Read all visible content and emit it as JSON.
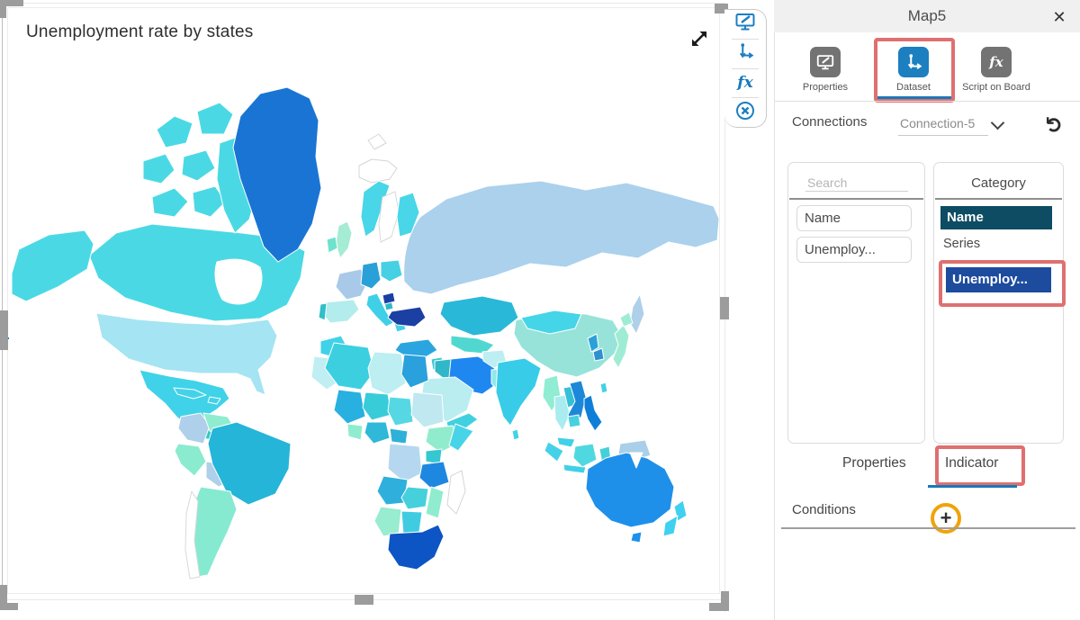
{
  "widget": {
    "title": "Unemployment rate by states"
  },
  "panel": {
    "title": "Map5",
    "close_label": "✕",
    "tabs": [
      {
        "label": "Properties"
      },
      {
        "label": "Dataset",
        "active": true
      },
      {
        "label": "Script on Board"
      }
    ],
    "connections": {
      "label": "Connections",
      "selected": "Connection-5"
    },
    "search": {
      "placeholder": "Search",
      "fields": [
        {
          "label": "Name"
        },
        {
          "label": "Unemploy..."
        }
      ]
    },
    "category": {
      "title": "Category",
      "category_item": "Name",
      "series_caption": "Series",
      "series_item": "Unemploy..."
    },
    "bottom_tabs": [
      {
        "label": "Properties"
      },
      {
        "label": "Indicator",
        "active": true
      }
    ],
    "conditions": {
      "label": "Conditions",
      "add_label": "+"
    }
  },
  "colors": {
    "accent_blue": "#1b7fc0",
    "annotation_red": "#df7070",
    "plus_orange": "#f0a30a",
    "category_item_bg": "#0e4c63",
    "series_item_bg": "#1d4b9e"
  },
  "map": {
    "regions": [
      {
        "id": "russia",
        "fill": "#abd1ec"
      },
      {
        "id": "sakhalin",
        "fill": "#aed0ea"
      },
      {
        "id": "canada",
        "fill": "#4ad9e4"
      },
      {
        "id": "hudson-bay",
        "fill": "#ffffff",
        "stroke": "#ffffff",
        "deco": true
      },
      {
        "id": "arctic-1",
        "fill": "#4ad9e4"
      },
      {
        "id": "arctic-2",
        "fill": "#4ad9e4"
      },
      {
        "id": "arctic-3",
        "fill": "#4ad9e4"
      },
      {
        "id": "arctic-4",
        "fill": "#4ad9e4"
      },
      {
        "id": "arctic-5",
        "fill": "#4ad9e4"
      },
      {
        "id": "arctic-6",
        "fill": "#4ad9e4"
      },
      {
        "id": "baffin",
        "fill": "#4ad9e4"
      },
      {
        "id": "alaska",
        "fill": "#4ad9e4"
      },
      {
        "id": "greenland",
        "fill": "#1a74d4"
      },
      {
        "id": "iceland",
        "fill": "#ffffff",
        "stroke": "#d5d5d5"
      },
      {
        "id": "svalbard",
        "fill": "#ffffff",
        "stroke": "#d5d5d5"
      },
      {
        "id": "usa",
        "fill": "#a5e4f2"
      },
      {
        "id": "mexico",
        "fill": "#3fd2e8"
      },
      {
        "id": "cuba",
        "fill": "#45d2e8"
      },
      {
        "id": "hispaniola",
        "fill": "#45d2e8"
      },
      {
        "id": "central-america",
        "fill": "#35c8c0"
      },
      {
        "id": "colombia",
        "fill": "#aed0ea"
      },
      {
        "id": "venezuela",
        "fill": "#8feccf"
      },
      {
        "id": "peru",
        "fill": "#8aebce"
      },
      {
        "id": "bolivia",
        "fill": "#aed0ea"
      },
      {
        "id": "brazil",
        "fill": "#25b5d8"
      },
      {
        "id": "argentina",
        "fill": "#86ead0"
      },
      {
        "id": "chile",
        "fill": "#ffffff",
        "stroke": "#d9d9d9"
      },
      {
        "id": "norway",
        "fill": "#48d6e8"
      },
      {
        "id": "sweden",
        "fill": "#ffffff",
        "stroke": "#d9d9d9"
      },
      {
        "id": "finland",
        "fill": "#48d6e8"
      },
      {
        "id": "uk",
        "fill": "#a4ecd4"
      },
      {
        "id": "ireland",
        "fill": "#6fe2cc"
      },
      {
        "id": "france",
        "fill": "#a9c9e8"
      },
      {
        "id": "spain",
        "fill": "#b3ecec"
      },
      {
        "id": "portugal",
        "fill": "#2fbfc8"
      },
      {
        "id": "germany",
        "fill": "#2aa0d8"
      },
      {
        "id": "poland",
        "fill": "#45d0e4"
      },
      {
        "id": "italy",
        "fill": "#3fd0e8"
      },
      {
        "id": "bosnia",
        "fill": "#2fb8c8"
      },
      {
        "id": "greece",
        "fill": "#45d0e4"
      },
      {
        "id": "lithuania",
        "fill": "#1c3fa4"
      },
      {
        "id": "ukraine",
        "fill": "#1c3fa4"
      },
      {
        "id": "kazakhstan",
        "fill": "#2ab8d8"
      },
      {
        "id": "central-asia",
        "fill": "#50d8d0"
      },
      {
        "id": "turkey",
        "fill": "#2aa5e0"
      },
      {
        "id": "levant",
        "fill": "#35c8d0"
      },
      {
        "id": "iraq",
        "fill": "#30b8c8"
      },
      {
        "id": "iran",
        "fill": "#1e88f0"
      },
      {
        "id": "afghanistan",
        "fill": "#bceef2"
      },
      {
        "id": "pakistan",
        "fill": "#8fe8ea"
      },
      {
        "id": "saudi",
        "fill": "#b9edf0"
      },
      {
        "id": "yemen",
        "fill": "#40d0e0"
      },
      {
        "id": "morocco",
        "fill": "#40d2e8"
      },
      {
        "id": "mauritania",
        "fill": "#c0eef2"
      },
      {
        "id": "algeria",
        "fill": "#3ccfe0"
      },
      {
        "id": "libya",
        "fill": "#bceef2"
      },
      {
        "id": "egypt",
        "fill": "#2aa0dc"
      },
      {
        "id": "mali",
        "fill": "#28b0e0"
      },
      {
        "id": "niger",
        "fill": "#38ccd8"
      },
      {
        "id": "chad",
        "fill": "#55d8e4"
      },
      {
        "id": "sudan",
        "fill": "#bfe8f0"
      },
      {
        "id": "nigeria",
        "fill": "#2fb8d8"
      },
      {
        "id": "ghana",
        "fill": "#8feccf"
      },
      {
        "id": "cameroon",
        "fill": "#2fb0d8"
      },
      {
        "id": "ethiopia",
        "fill": "#90eccc"
      },
      {
        "id": "somalia",
        "fill": "#48d4e8"
      },
      {
        "id": "kenya",
        "fill": "#35c8d0"
      },
      {
        "id": "drc",
        "fill": "#b5d8f0"
      },
      {
        "id": "tanzania",
        "fill": "#1e88e0"
      },
      {
        "id": "angola",
        "fill": "#2fb0dc"
      },
      {
        "id": "zambia",
        "fill": "#45d0dc"
      },
      {
        "id": "mozambique",
        "fill": "#8feccf"
      },
      {
        "id": "namibia",
        "fill": "#98ecd0"
      },
      {
        "id": "botswana",
        "fill": "#40cce0"
      },
      {
        "id": "south-africa",
        "fill": "#0d55c4"
      },
      {
        "id": "madagascar",
        "fill": "#ffffff",
        "stroke": "#d5d5d5"
      },
      {
        "id": "india",
        "fill": "#38cce8"
      },
      {
        "id": "sri-lanka",
        "fill": "#45d2e8"
      },
      {
        "id": "china",
        "fill": "#97e3da"
      },
      {
        "id": "mongolia",
        "fill": "#45d5e8"
      },
      {
        "id": "myanmar",
        "fill": "#90ecd2"
      },
      {
        "id": "thailand",
        "fill": "#a8ecf0"
      },
      {
        "id": "laos",
        "fill": "#35c0d8"
      },
      {
        "id": "vietnam",
        "fill": "#1e88d8"
      },
      {
        "id": "cambodia",
        "fill": "#48d0e0"
      },
      {
        "id": "malaysia",
        "fill": "#40d0e8"
      },
      {
        "id": "sumatra",
        "fill": "#45d2e8"
      },
      {
        "id": "java",
        "fill": "#40d0e8"
      },
      {
        "id": "borneo",
        "fill": "#50d8e0"
      },
      {
        "id": "sulawesi",
        "fill": "#45d0d8"
      },
      {
        "id": "philippines",
        "fill": "#0e7fd8"
      },
      {
        "id": "taiwan",
        "fill": "#45d0e4"
      },
      {
        "id": "korea-north",
        "fill": "#2aa0d8"
      },
      {
        "id": "korea-south",
        "fill": "#2f90d0"
      },
      {
        "id": "japan",
        "fill": "#9fecd4"
      },
      {
        "id": "hokkaido",
        "fill": "#9fecd4"
      },
      {
        "id": "papua",
        "fill": "#aacfe8"
      },
      {
        "id": "australia",
        "fill": "#1e90ea"
      },
      {
        "id": "carpentaria",
        "fill": "#ffffff",
        "stroke": "#ffffff",
        "deco": true
      },
      {
        "id": "tasmania",
        "fill": "#1e90ea"
      },
      {
        "id": "nz-north",
        "fill": "#40d0f0"
      },
      {
        "id": "nz-south",
        "fill": "#40d0f0"
      }
    ]
  }
}
